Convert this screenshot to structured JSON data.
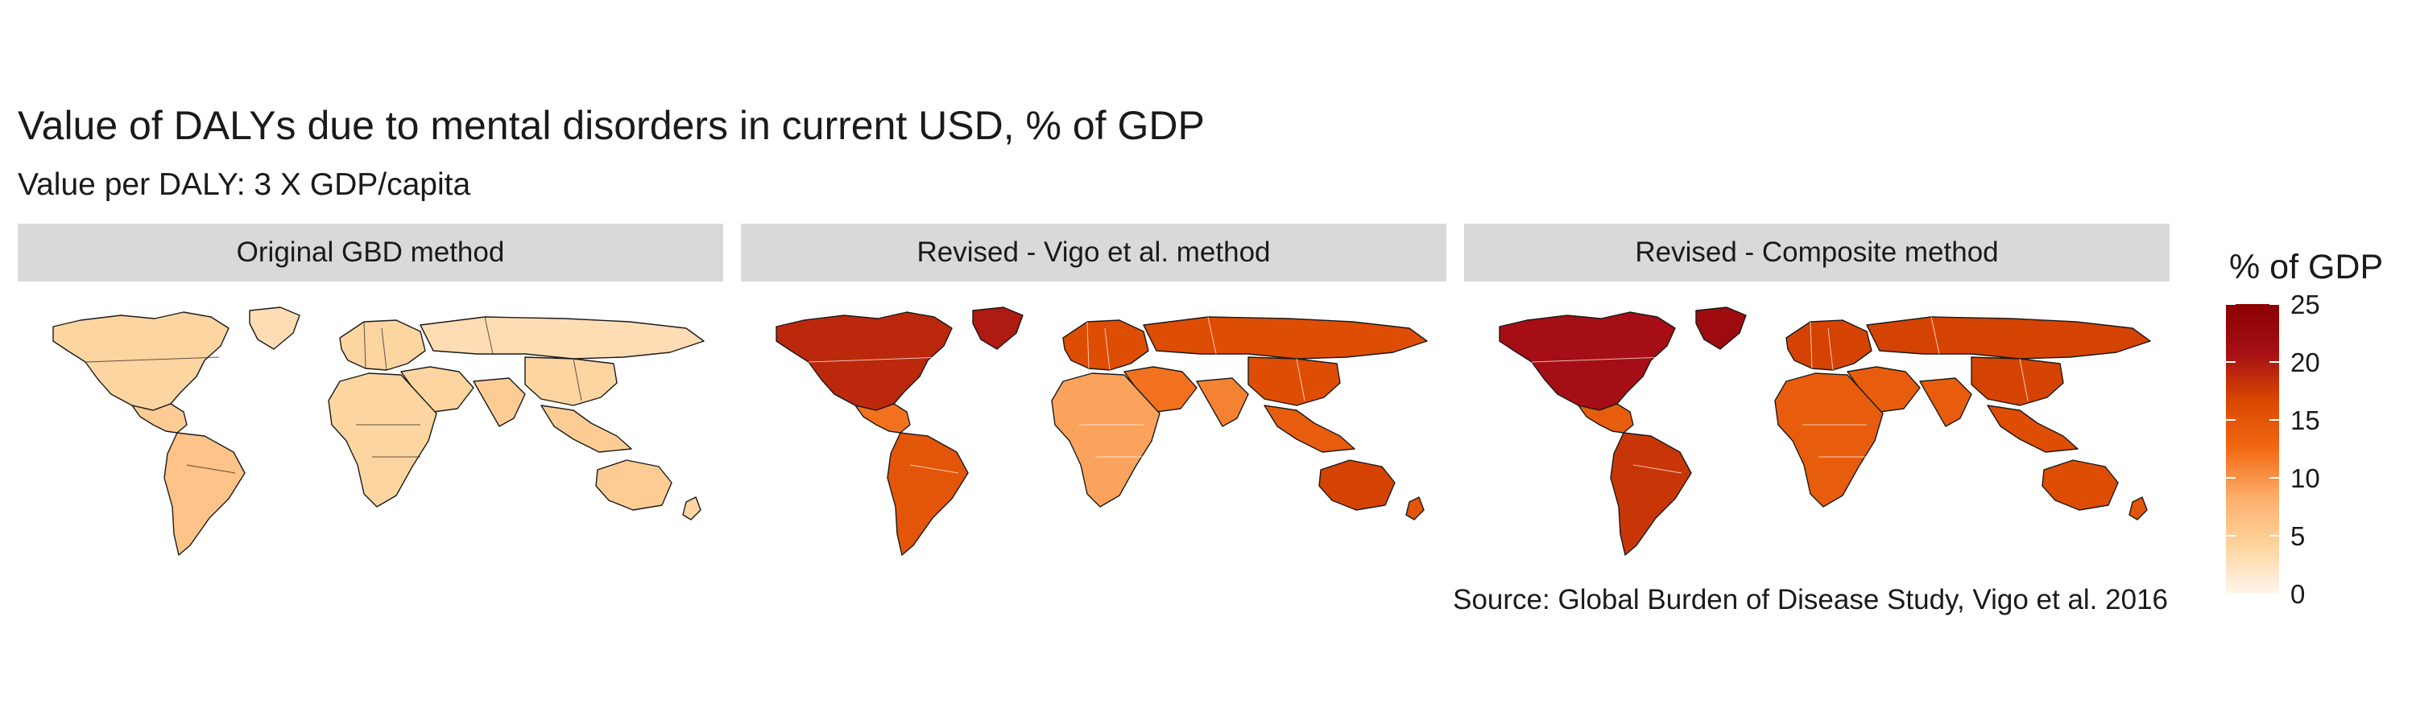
{
  "title": "Value of DALYs due to mental disorders in current USD, % of GDP",
  "subtitle": "Value per DALY: 3 X GDP/capita",
  "caption": "Source: Global Burden of Disease Study, Vigo et al. 2016",
  "legend": {
    "title": "% of GDP",
    "ticks": [
      "25",
      "20",
      "15",
      "10",
      "5",
      "0"
    ],
    "range": [
      0,
      25
    ],
    "colors": [
      "#fff5eb",
      "#fdd49e",
      "#fdae6b",
      "#f16913",
      "#d94801",
      "#a50f15",
      "#8b0000"
    ]
  },
  "panels": [
    {
      "label": "Original GBD method",
      "shades": {
        "north_america": 4,
        "greenland": 3,
        "latin_america": 5,
        "south_america": 6,
        "europe": 4,
        "russia": 3,
        "middle_east": 4,
        "africa": 4,
        "south_asia": 5,
        "east_asia": 4,
        "southeast_asia": 5,
        "australia": 5,
        "new_zealand": 4
      }
    },
    {
      "label": "Revised - Vigo et al. method",
      "shades": {
        "north_america": 19,
        "greenland": 20,
        "latin_america": 12,
        "south_america": 15,
        "europe": 16,
        "russia": 16,
        "middle_east": 12,
        "africa": 9,
        "south_asia": 11,
        "east_asia": 16,
        "southeast_asia": 14,
        "australia": 17,
        "new_zealand": 15
      }
    },
    {
      "label": "Revised - Composite method",
      "shades": {
        "north_america": 21,
        "greenland": 22,
        "latin_america": 14,
        "south_america": 18,
        "europe": 17,
        "russia": 17,
        "middle_east": 14,
        "africa": 14,
        "south_asia": 14,
        "east_asia": 17,
        "southeast_asia": 16,
        "australia": 16,
        "new_zealand": 15
      }
    }
  ]
}
